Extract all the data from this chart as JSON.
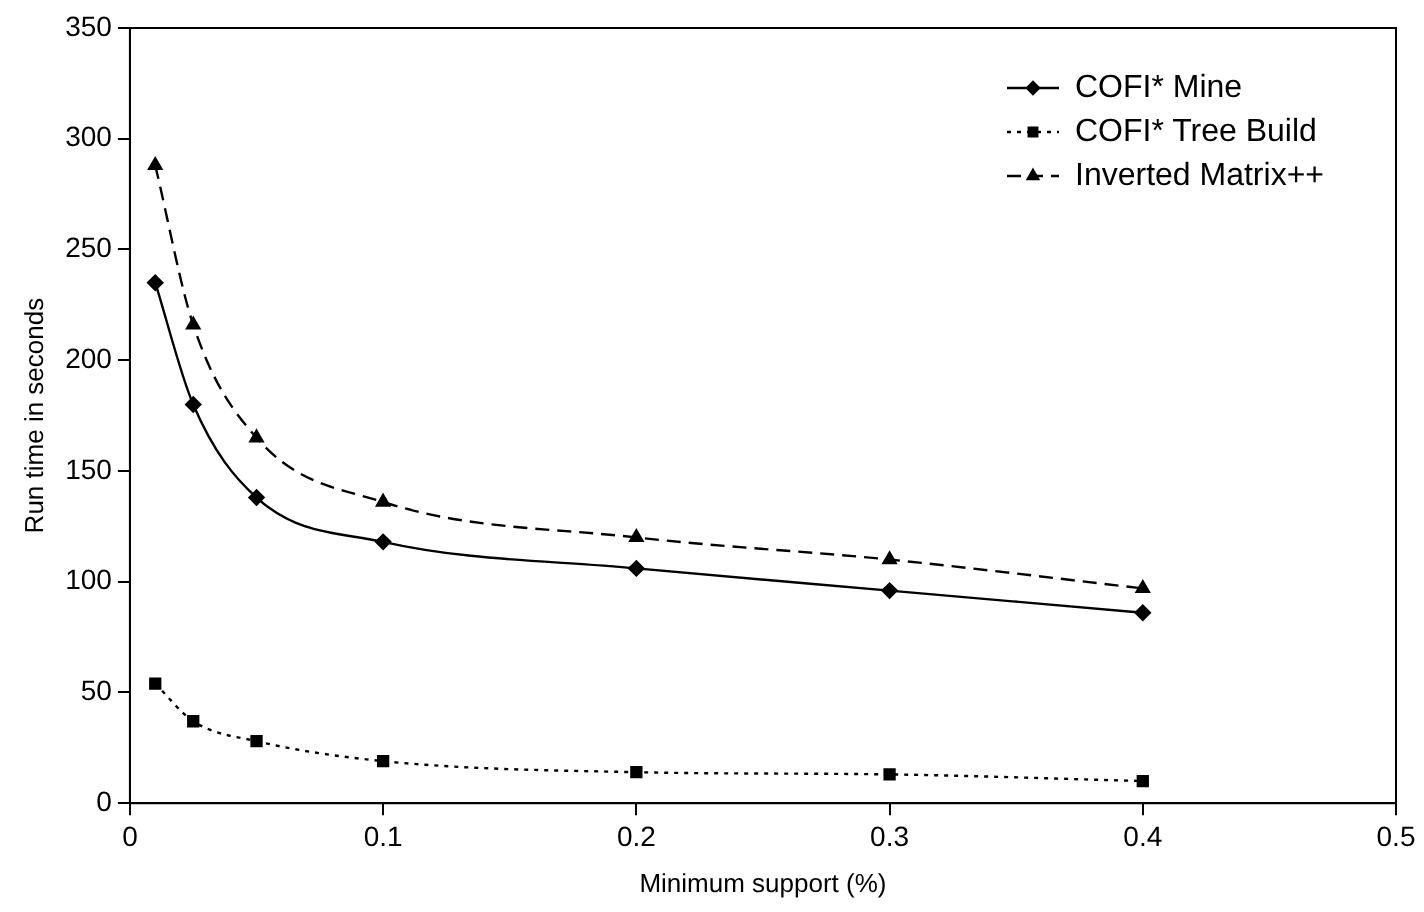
{
  "chart_data": {
    "type": "line",
    "xlabel": "Minimum support (%)",
    "ylabel": "Run time in seconds",
    "x": [
      0.01,
      0.025,
      0.05,
      0.1,
      0.2,
      0.3,
      0.4
    ],
    "series": [
      {
        "name": "COFI* Mine",
        "color": "#000000",
        "values": [
          235,
          180,
          138,
          118,
          106,
          96,
          86
        ],
        "marker": "diamond",
        "line_style": "solid"
      },
      {
        "name": "COFI* Tree Build",
        "color": "#000000",
        "values": [
          54,
          37,
          28,
          19,
          14,
          13,
          10
        ],
        "marker": "square",
        "line_style": "dotted"
      },
      {
        "name": "Inverted Matrix++",
        "color": "#000000",
        "values": [
          288,
          216,
          165,
          136,
          120,
          110,
          97
        ],
        "marker": "triangle",
        "line_style": "dashed"
      }
    ],
    "xlim": [
      0,
      0.5
    ],
    "xticks": [
      0,
      0.1,
      0.2,
      0.3,
      0.4,
      0.5
    ],
    "ylim": [
      0,
      350
    ],
    "yticks": [
      0,
      50,
      100,
      150,
      200,
      250,
      300,
      350
    ],
    "grid": false,
    "legend": "top right"
  }
}
